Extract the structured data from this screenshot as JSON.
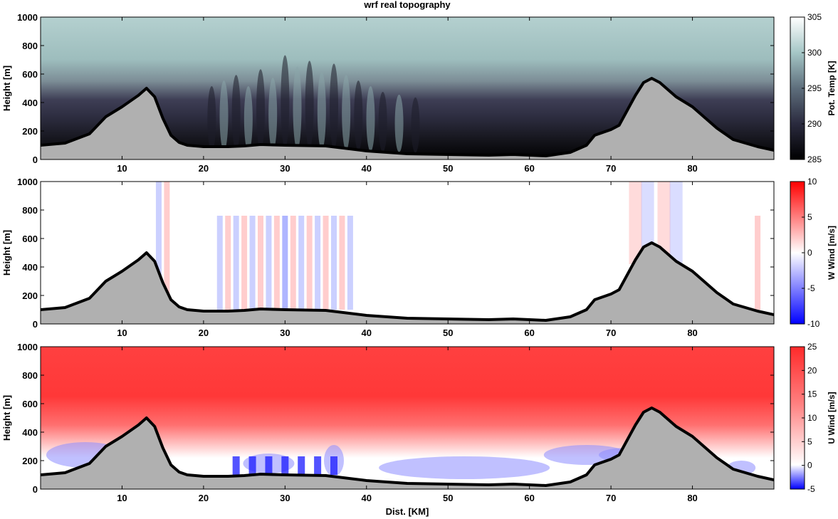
{
  "title": "wrf real topography",
  "xlabel": "Dist. [KM]",
  "chart_data": [
    {
      "type": "heatmap",
      "panel": "potential-temperature",
      "ylabel": "Height [m]",
      "colorbar_label": "Pot. Temp [K]",
      "xlim": [
        0,
        90
      ],
      "ylim": [
        0,
        1000
      ],
      "x_ticks": [
        10,
        20,
        30,
        40,
        50,
        60,
        70,
        80
      ],
      "y_ticks": [
        0,
        200,
        400,
        600,
        800,
        1000
      ],
      "clim": [
        285,
        305
      ],
      "cbar_ticks": [
        285,
        290,
        295,
        300,
        305
      ],
      "colors": {
        "low": "#000000",
        "mid": "#3a3a52",
        "high": "#ffffff",
        "upper_air": "#a5c6c6"
      }
    },
    {
      "type": "heatmap",
      "panel": "vertical-wind",
      "ylabel": "Height [m]",
      "colorbar_label": "W Wind [m/s]",
      "xlim": [
        0,
        90
      ],
      "ylim": [
        0,
        1000
      ],
      "x_ticks": [
        10,
        20,
        30,
        40,
        50,
        60,
        70,
        80
      ],
      "y_ticks": [
        0,
        200,
        400,
        600,
        800,
        1000
      ],
      "clim": [
        -10,
        10
      ],
      "cbar_ticks": [
        -10,
        -5,
        0,
        5,
        10
      ],
      "colors": {
        "negative": "#0000ff",
        "zero": "#ffffff",
        "positive": "#ff0000"
      }
    },
    {
      "type": "heatmap",
      "panel": "horizontal-wind",
      "ylabel": "Height [m]",
      "colorbar_label": "U Wind [m/s]",
      "xlim": [
        0,
        90
      ],
      "ylim": [
        0,
        1000
      ],
      "x_ticks": [
        10,
        20,
        30,
        40,
        50,
        60,
        70,
        80
      ],
      "y_ticks": [
        0,
        200,
        400,
        600,
        800,
        1000
      ],
      "clim": [
        -5,
        25
      ],
      "cbar_ticks": [
        -5,
        0,
        5,
        10,
        15,
        20,
        25
      ],
      "colors": {
        "negative": "#0000ff",
        "zero": "#ffffff",
        "positive": "#ff3333"
      }
    }
  ],
  "terrain": {
    "x": [
      0,
      3,
      6,
      8,
      10,
      12,
      13,
      14,
      15,
      16,
      17,
      18,
      20,
      23,
      25,
      27,
      30,
      35,
      40,
      45,
      50,
      55,
      58,
      60,
      62,
      65,
      67,
      68,
      70,
      71,
      73,
      74,
      75,
      76,
      78,
      80,
      83,
      85,
      88,
      90
    ],
    "y": [
      100,
      115,
      180,
      300,
      370,
      450,
      500,
      440,
      290,
      170,
      120,
      100,
      90,
      90,
      95,
      105,
      100,
      95,
      60,
      40,
      35,
      30,
      35,
      30,
      25,
      50,
      100,
      170,
      210,
      240,
      450,
      540,
      570,
      540,
      440,
      370,
      220,
      140,
      90,
      65
    ],
    "fill": "#b0b0b0",
    "outline": "#000000"
  }
}
